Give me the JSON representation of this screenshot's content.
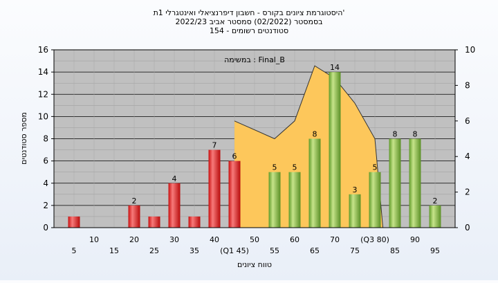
{
  "chart_data": {
    "type": "bar",
    "title_lines": [
      "היסטוגרמת ציונים בקורס - חשבון דיפרנציאלי ואינטגרלי 1ת'",
      "בסמסטר  (02/2022)  סמסטר אביב 2022/23",
      "סטודנטים רשומים - 154"
    ],
    "annotation": "במשימה : Final_B",
    "xlabel": "טווח ציונים",
    "ylabel": "מספר סטודנטים",
    "ylim": [
      0,
      16
    ],
    "y_ticks": [
      0,
      2,
      4,
      6,
      8,
      10,
      12,
      14,
      16
    ],
    "y2lim": [
      0,
      10
    ],
    "y2_ticks": [
      0,
      2,
      4,
      6,
      8,
      10
    ],
    "x_tick_labels": [
      "5",
      "10",
      "15",
      "20",
      "25",
      "30",
      "35",
      "40",
      "(Q1 45)",
      "50",
      "55",
      "60",
      "65",
      "70",
      "75",
      "(Q3 80)",
      "85",
      "90",
      "95"
    ],
    "categories": [
      5,
      10,
      15,
      20,
      25,
      30,
      35,
      40,
      45,
      50,
      55,
      60,
      65,
      70,
      75,
      80,
      85,
      90,
      95
    ],
    "values": [
      1,
      0,
      0,
      2,
      1,
      4,
      1,
      7,
      6,
      0,
      5,
      5,
      8,
      14,
      3,
      5,
      8,
      8,
      2
    ],
    "data_labels": [
      "",
      "",
      "",
      "2",
      "",
      "4",
      "",
      "7",
      "6",
      "",
      "5",
      "5",
      "8",
      "14",
      "3",
      "5",
      "8",
      "8",
      "2"
    ],
    "bar_colors": [
      "red",
      "",
      "",
      "red",
      "red",
      "red",
      "red",
      "red",
      "red",
      "",
      "green",
      "green",
      "green",
      "green",
      "green",
      "green",
      "green",
      "green",
      "green"
    ],
    "area_series": {
      "x": [
        45,
        55,
        60,
        65,
        70,
        75,
        80,
        82
      ],
      "y": [
        6,
        5,
        6,
        9.1,
        8.4,
        7,
        5,
        0
      ]
    },
    "colors": {
      "red_light": "#f77a7a",
      "red_dark": "#c81010",
      "green_light": "#c6e48a",
      "green_dark": "#5f9a2a",
      "area": "#fdc75b",
      "plot_bg": "#c0c0c0"
    },
    "grid": true
  }
}
